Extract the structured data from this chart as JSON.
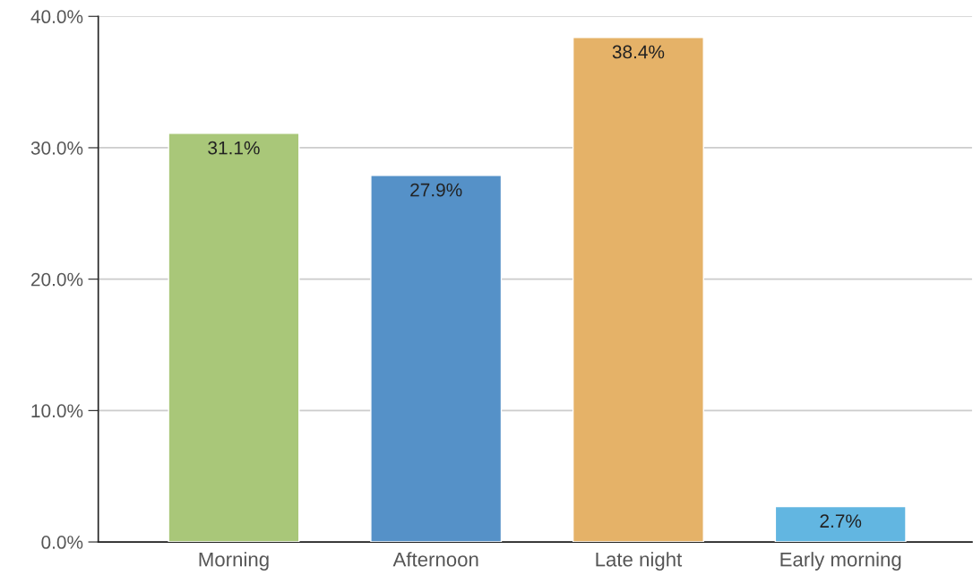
{
  "chart_data": {
    "type": "bar",
    "categories": [
      "Morning",
      "Afternoon",
      "Late night",
      "Early morning"
    ],
    "values": [
      31.1,
      27.9,
      38.4,
      2.7
    ],
    "colors": [
      "#a9c779",
      "#5591c8",
      "#e5b268",
      "#62b6e1"
    ],
    "value_labels": [
      "31.1%",
      "27.9%",
      "38.4%",
      "2.7%"
    ],
    "ylim": [
      0,
      40
    ],
    "yticks": [
      {
        "value": 0,
        "label": "0.0%"
      },
      {
        "value": 10,
        "label": "10.0%"
      },
      {
        "value": 20,
        "label": "20.0%"
      },
      {
        "value": 30,
        "label": "30.0%"
      },
      {
        "value": 40,
        "label": "40.0%"
      }
    ],
    "grid": "y",
    "legend": false
  }
}
